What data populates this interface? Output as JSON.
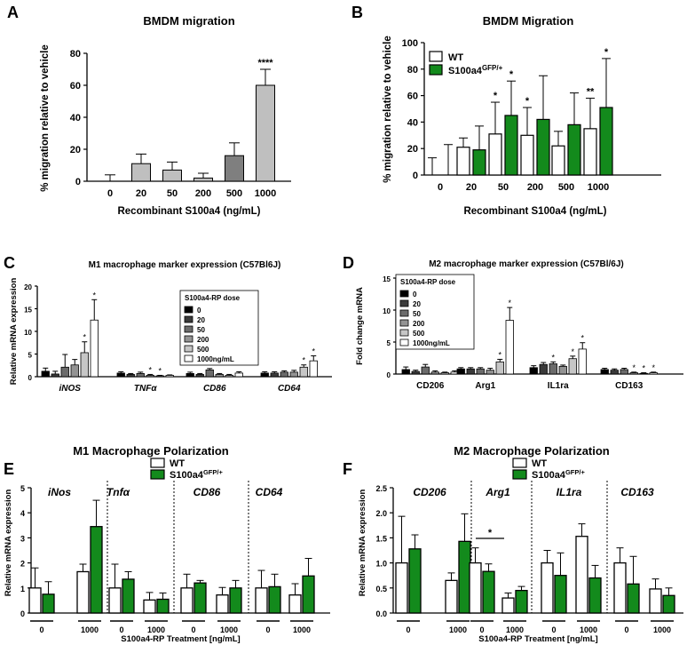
{
  "panel_labels": [
    "A",
    "B",
    "C",
    "D",
    "E",
    "F"
  ],
  "chart_data": [
    {
      "panel": "A",
      "type": "bar",
      "title": "BMDM migration",
      "xlabel": "Recombinant S100a4 (ng/mL)",
      "ylabel": "% migration relative to vehicle",
      "ylim": [
        0,
        80
      ],
      "yticks": [
        "0",
        "20",
        "40",
        "60",
        "80"
      ],
      "categories": [
        "0",
        "20",
        "50",
        "200",
        "500",
        "1000"
      ],
      "values": [
        0,
        11,
        7,
        2,
        16,
        60
      ],
      "errors": [
        4,
        6,
        5,
        3,
        8,
        10
      ],
      "colors": [
        "#bfbfbf",
        "#bfbfbf",
        "#bfbfbf",
        "#bfbfbf",
        "#7f7f7f",
        "#bfbfbf"
      ],
      "sig": [
        "",
        "",
        "",
        "",
        "",
        "****"
      ]
    },
    {
      "panel": "B",
      "type": "bar",
      "title": "BMDM Migration",
      "xlabel": "Recombinant S100a4 (ng/mL)",
      "ylabel": "% migration relative to vehicle",
      "ylim": [
        0,
        100
      ],
      "yticks": [
        "0",
        "20",
        "40",
        "60",
        "80",
        "100"
      ],
      "categories": [
        "0",
        "20",
        "50",
        "200",
        "500",
        "1000"
      ],
      "legend": {
        "wt": "WT",
        "mut_base": "S100a4",
        "mut_sup": "GFP/+"
      },
      "series": [
        {
          "name": "WT",
          "values": [
            0,
            21,
            31,
            30,
            22,
            35
          ],
          "errors": [
            13,
            7,
            24,
            21,
            11,
            23
          ],
          "sig": [
            "",
            "",
            "*",
            "*",
            "",
            "**"
          ]
        },
        {
          "name": "S100a4GFP/+",
          "values": [
            0,
            19,
            45,
            42,
            38,
            51
          ],
          "errors": [
            23,
            18,
            26,
            33,
            24,
            37
          ],
          "sig": [
            "",
            "",
            "*",
            "",
            "",
            "*"
          ]
        }
      ]
    },
    {
      "panel": "C",
      "type": "bar",
      "title": "M1 macrophage marker expression (C57Bl6J)",
      "ylabel": "Relative mRNA expression",
      "ylim": [
        0,
        20
      ],
      "yticks": [
        "0",
        "5",
        "10",
        "15",
        "20"
      ],
      "categories": [
        "iNOS",
        "TNFα",
        "CD86",
        "CD64"
      ],
      "legend_title": "S100a4-RP dose",
      "doses": [
        "0",
        "20",
        "50",
        "200",
        "500",
        "1000ng/mL"
      ],
      "dose_colors": [
        "#000000",
        "#3a3a3a",
        "#6b6b6b",
        "#939393",
        "#c6c6c6",
        "#ffffff"
      ],
      "values": [
        [
          1.2,
          0.6,
          2.1,
          2.6,
          5.3,
          12.5
        ],
        [
          0.8,
          0.5,
          0.7,
          0.3,
          0.2,
          0.3
        ],
        [
          0.7,
          0.5,
          1.5,
          0.5,
          0.3,
          0.8
        ],
        [
          0.8,
          0.8,
          1.0,
          1.0,
          2.1,
          3.5
        ]
      ],
      "errors": [
        [
          0.7,
          0.6,
          2.8,
          1.2,
          2.4,
          4.5
        ],
        [
          0.3,
          0.2,
          0.3,
          0.2,
          0.1,
          0.1
        ],
        [
          0.3,
          0.2,
          0.3,
          0.2,
          0.2,
          0.3
        ],
        [
          0.3,
          0.3,
          0.3,
          0.4,
          0.5,
          1.1
        ]
      ],
      "sig": [
        [
          "",
          "",
          "",
          "",
          "*",
          "*"
        ],
        [
          "",
          "",
          "",
          "*",
          "*",
          ""
        ],
        [
          "",
          "",
          "",
          "",
          "",
          ""
        ],
        [
          "",
          "",
          "",
          "",
          "*",
          "*"
        ]
      ]
    },
    {
      "panel": "D",
      "type": "bar",
      "title": "M2 macrophage marker expression (C57Bl/6J)",
      "ylabel": "Fold change mRNA",
      "ylim": [
        0,
        15
      ],
      "yticks": [
        "0",
        "5",
        "10",
        "15"
      ],
      "categories": [
        "CD206",
        "Arg1",
        "IL1ra",
        "CD163"
      ],
      "legend_title": "S100a4-RP dose",
      "doses": [
        "0",
        "20",
        "50",
        "200",
        "500",
        "1000ng/mL"
      ],
      "dose_colors": [
        "#000000",
        "#3a3a3a",
        "#6b6b6b",
        "#939393",
        "#c6c6c6",
        "#ffffff"
      ],
      "values": [
        [
          0.7,
          0.4,
          1.1,
          0.3,
          0.2,
          0.3
        ],
        [
          0.8,
          0.8,
          0.8,
          0.6,
          1.9,
          8.4
        ],
        [
          1.0,
          1.5,
          1.6,
          1.2,
          2.4,
          3.9
        ],
        [
          0.7,
          0.6,
          0.7,
          0.2,
          0.1,
          0.2
        ]
      ],
      "errors": [
        [
          0.4,
          0.2,
          0.4,
          0.2,
          0.1,
          0.2
        ],
        [
          0.2,
          0.2,
          0.2,
          0.3,
          0.4,
          2.0
        ],
        [
          0.3,
          0.3,
          0.3,
          0.2,
          0.4,
          1.0
        ],
        [
          0.2,
          0.2,
          0.2,
          0.1,
          0.1,
          0.1
        ]
      ],
      "sig": [
        [
          "",
          "",
          "",
          "",
          "",
          ""
        ],
        [
          "",
          "",
          "",
          "",
          "*",
          "*"
        ],
        [
          "",
          "",
          "*",
          "",
          "*",
          "*"
        ],
        [
          "",
          "",
          "",
          "*",
          "*",
          "*"
        ]
      ]
    },
    {
      "panel": "E",
      "type": "bar",
      "title": "M1 Macrophage Polarization",
      "ylabel": "Relative mRNA expression",
      "xlabel": "S100a4-RP Treatment [ng/mL]",
      "ylim": [
        0,
        5
      ],
      "yticks": [
        "0",
        "1",
        "2",
        "3",
        "4",
        "5"
      ],
      "legend": {
        "wt": "WT",
        "mut_base": "S100a4",
        "mut_sup": "GFP/+"
      },
      "genes": [
        "iNos",
        "Tnfα",
        "CD86",
        "CD64"
      ],
      "doses": [
        "0",
        "1000"
      ],
      "groups": [
        {
          "wt": [
            1.0,
            1.65
          ],
          "mut": [
            0.75,
            3.45
          ],
          "wt_err": [
            0.8,
            0.3
          ],
          "mut_err": [
            0.5,
            1.05
          ]
        },
        {
          "wt": [
            1.0,
            0.52
          ],
          "mut": [
            1.35,
            0.55
          ],
          "wt_err": [
            0.95,
            0.3
          ],
          "mut_err": [
            0.3,
            0.25
          ]
        },
        {
          "wt": [
            1.0,
            0.72
          ],
          "mut": [
            1.2,
            1.0
          ],
          "wt_err": [
            0.55,
            0.3
          ],
          "mut_err": [
            0.1,
            0.3
          ]
        },
        {
          "wt": [
            1.0,
            0.72
          ],
          "mut": [
            1.05,
            1.48
          ],
          "wt_err": [
            0.7,
            0.45
          ],
          "mut_err": [
            0.5,
            0.7
          ]
        }
      ]
    },
    {
      "panel": "F",
      "type": "bar",
      "title": "M2 Macrophage Polarization",
      "ylabel": "Relative mRNA expression",
      "xlabel": "S100a4-RP Treatment [ng/mL]",
      "ylim": [
        0,
        2.5
      ],
      "yticks": [
        "0.0",
        "0.5",
        "1.0",
        "1.5",
        "2.0",
        "2.5"
      ],
      "legend": {
        "wt": "WT",
        "mut_base": "S100a4",
        "mut_sup": "GFP/+"
      },
      "genes": [
        "CD206",
        "Arg1",
        "IL1ra",
        "CD163"
      ],
      "doses": [
        "0",
        "1000"
      ],
      "sig": "*",
      "groups": [
        {
          "wt": [
            1.0,
            0.65
          ],
          "mut": [
            1.28,
            1.43
          ],
          "wt_err": [
            0.93,
            0.15
          ],
          "mut_err": [
            0.28,
            0.55
          ]
        },
        {
          "wt": [
            1.0,
            0.3
          ],
          "mut": [
            0.83,
            0.45
          ],
          "wt_err": [
            0.3,
            0.1
          ],
          "mut_err": [
            0.15,
            0.08
          ]
        },
        {
          "wt": [
            1.0,
            1.53
          ],
          "mut": [
            0.75,
            0.7
          ],
          "wt_err": [
            0.25,
            0.25
          ],
          "mut_err": [
            0.45,
            0.25
          ]
        },
        {
          "wt": [
            1.0,
            0.48
          ],
          "mut": [
            0.58,
            0.35
          ],
          "wt_err": [
            0.3,
            0.2
          ],
          "mut_err": [
            0.55,
            0.15
          ]
        }
      ]
    }
  ]
}
